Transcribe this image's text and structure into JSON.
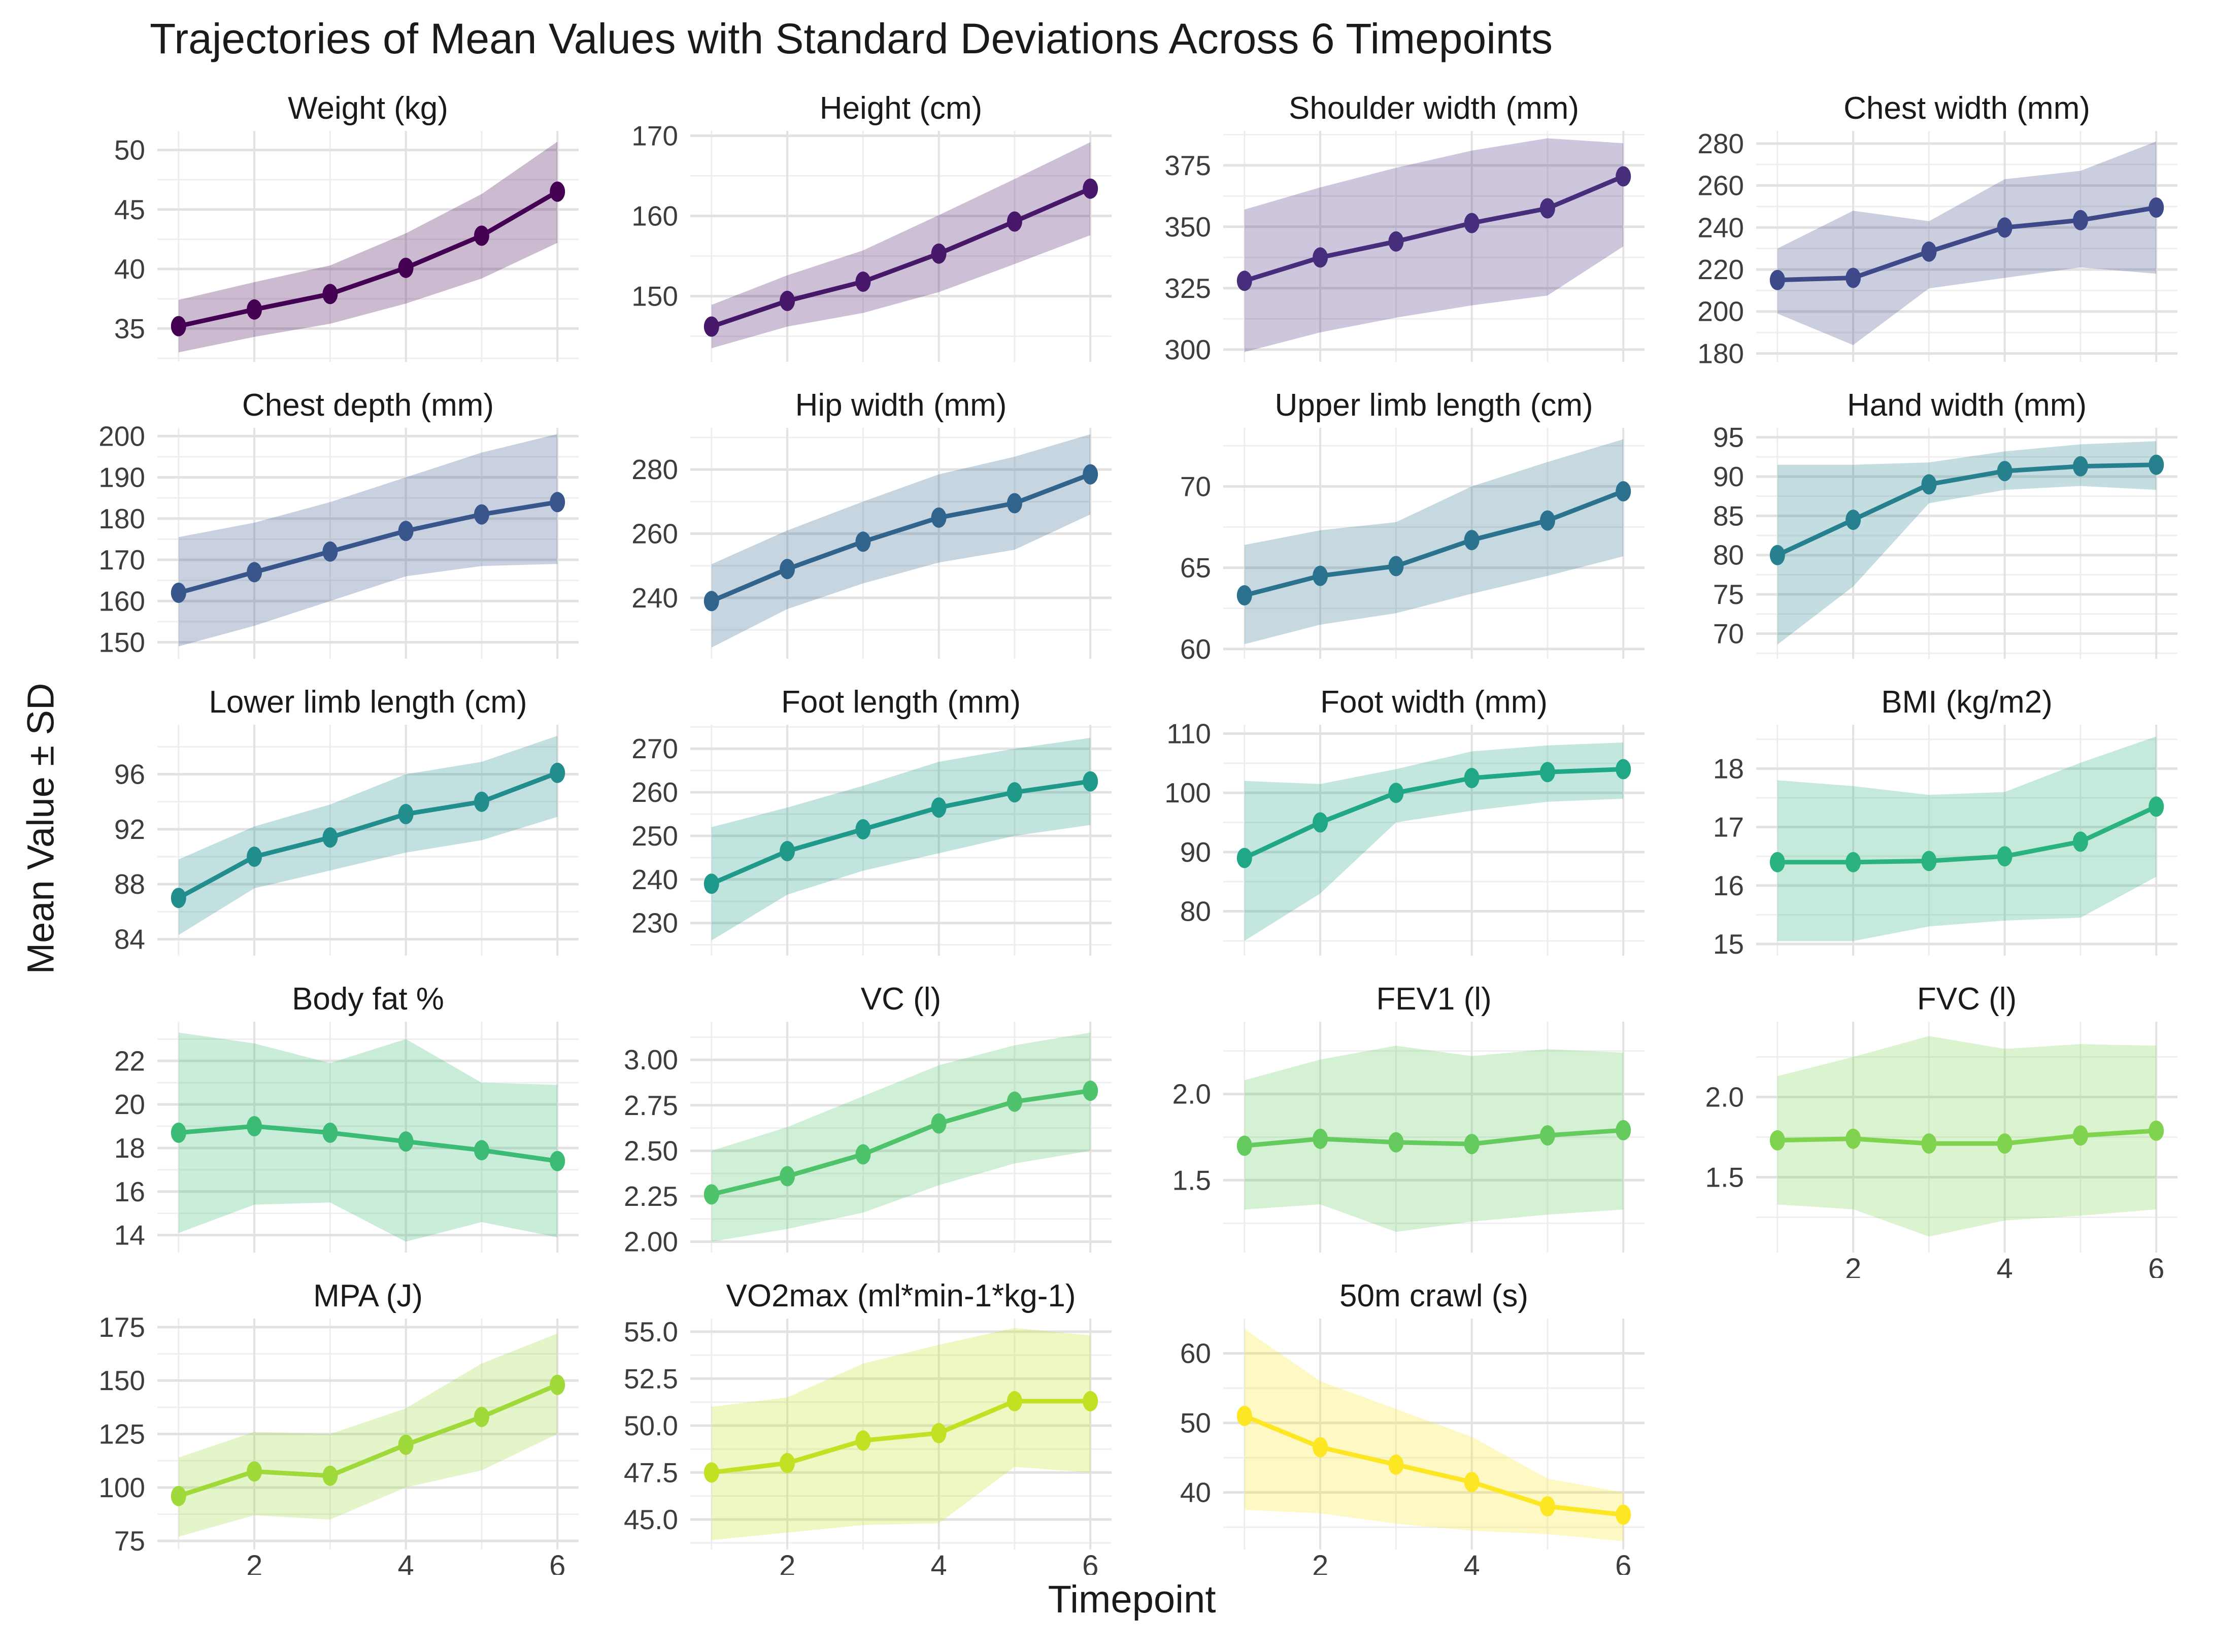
{
  "title": "Trajectories of Mean Values with Standard Deviations Across 6 Timepoints",
  "chart_data": {
    "type": "line",
    "title": "Trajectories of Mean Values with Standard Deviations Across 6 Timepoints",
    "xlabel": "Timepoint",
    "ylabel": "Mean Value ± SD",
    "x": [
      1,
      2,
      3,
      4,
      5,
      6
    ],
    "x_ticks_at": [
      2,
      4,
      6
    ],
    "x_tick_labels": [
      "2",
      "4",
      "6"
    ],
    "grid": "on",
    "legend": "none",
    "ribbon_opacity": 0.27,
    "facets": [
      {
        "title": "Weight (kg)",
        "color": "#440154",
        "row": 1,
        "col": 1,
        "show_x_ticks": false,
        "ylim": [
          32.2,
          51.6
        ],
        "yticks": [
          35,
          40,
          45,
          50
        ],
        "ytick_labels": [
          "35",
          "40",
          "45",
          "50"
        ],
        "mean": [
          35.2,
          36.6,
          37.9,
          40.1,
          42.8,
          46.5
        ],
        "sd_lower": [
          33.0,
          34.3,
          35.4,
          37.1,
          39.2,
          42.2
        ],
        "sd_upper": [
          37.4,
          38.9,
          40.3,
          43.0,
          46.3,
          50.7
        ]
      },
      {
        "title": "Height (cm)",
        "color": "#471769",
        "row": 1,
        "col": 2,
        "show_x_ticks": false,
        "ylim": [
          141.8,
          170.6
        ],
        "yticks": [
          150,
          160,
          170
        ],
        "ytick_labels": [
          "150",
          "160",
          "170"
        ],
        "mean": [
          146.2,
          149.4,
          151.8,
          155.3,
          159.3,
          163.4
        ],
        "sd_lower": [
          143.5,
          146.2,
          147.9,
          150.5,
          154.0,
          157.6
        ],
        "sd_upper": [
          148.9,
          152.6,
          155.7,
          160.1,
          164.6,
          169.2
        ]
      },
      {
        "title": "Shoulder width (mm)",
        "color": "#472E7C",
        "row": 1,
        "col": 3,
        "show_x_ticks": false,
        "ylim": [
          295,
          389
        ],
        "yticks": [
          300,
          325,
          350,
          375
        ],
        "ytick_labels": [
          "300",
          "325",
          "350",
          "375"
        ],
        "mean": [
          328,
          337.5,
          344,
          351.5,
          357.5,
          370.5
        ],
        "sd_lower": [
          299,
          307,
          313,
          318,
          322,
          342
        ],
        "sd_upper": [
          357,
          366,
          374,
          381,
          386,
          384
        ]
      },
      {
        "title": "Chest width (mm)",
        "color": "#3E4989",
        "row": 1,
        "col": 4,
        "show_x_ticks": false,
        "ylim": [
          176,
          286
        ],
        "yticks": [
          180,
          200,
          220,
          240,
          260,
          280
        ],
        "ytick_labels": [
          "180",
          "200",
          "220",
          "240",
          "260",
          "280"
        ],
        "mean": [
          215,
          216,
          228.5,
          240,
          243.5,
          249.5
        ],
        "sd_lower": [
          199,
          184,
          211,
          216,
          221,
          218
        ],
        "sd_upper": [
          230,
          248,
          243,
          263,
          267,
          281
        ]
      },
      {
        "title": "Chest depth (mm)",
        "color": "#38568B",
        "row": 2,
        "col": 1,
        "show_x_ticks": false,
        "ylim": [
          146,
          202
        ],
        "yticks": [
          150,
          160,
          170,
          180,
          190,
          200
        ],
        "ytick_labels": [
          "150",
          "160",
          "170",
          "180",
          "190",
          "200"
        ],
        "mean": [
          162,
          167,
          172,
          177,
          181,
          184
        ],
        "sd_lower": [
          149,
          154,
          160,
          166,
          168.5,
          169
        ],
        "sd_upper": [
          175.5,
          179,
          184,
          190,
          196,
          200.5
        ]
      },
      {
        "title": "Hip width (mm)",
        "color": "#31648D",
        "row": 2,
        "col": 2,
        "show_x_ticks": false,
        "ylim": [
          221,
          293
        ],
        "yticks": [
          240,
          260,
          280
        ],
        "ytick_labels": [
          "240",
          "260",
          "280"
        ],
        "mean": [
          239,
          249,
          257.5,
          265,
          269.5,
          278.5
        ],
        "sd_lower": [
          224.5,
          236.5,
          244.5,
          251,
          255,
          266
        ],
        "sd_upper": [
          250.5,
          261,
          270,
          278.5,
          284,
          291
        ]
      },
      {
        "title": "Upper limb length (cm)",
        "color": "#2B728E",
        "row": 2,
        "col": 3,
        "show_x_ticks": false,
        "ylim": [
          59.4,
          73.6
        ],
        "yticks": [
          60,
          65,
          70
        ],
        "ytick_labels": [
          "60",
          "65",
          "70"
        ],
        "mean": [
          63.3,
          64.5,
          65.1,
          66.7,
          67.9,
          69.7
        ],
        "sd_lower": [
          60.3,
          61.5,
          62.2,
          63.4,
          64.5,
          65.7
        ],
        "sd_upper": [
          66.4,
          67.3,
          67.8,
          70.0,
          71.5,
          72.9
        ]
      },
      {
        "title": "Hand width (mm)",
        "color": "#26808E",
        "row": 2,
        "col": 4,
        "show_x_ticks": false,
        "ylim": [
          66.8,
          96.2
        ],
        "yticks": [
          70,
          75,
          80,
          85,
          90,
          95
        ],
        "ytick_labels": [
          "70",
          "75",
          "80",
          "85",
          "90",
          "95"
        ],
        "mean": [
          80,
          84.5,
          89,
          90.7,
          91.3,
          91.5
        ],
        "sd_lower": [
          68.6,
          76,
          86.6,
          88.3,
          88.8,
          88.3
        ],
        "sd_upper": [
          91.5,
          91.5,
          91.8,
          93.2,
          94.1,
          94.5
        ]
      },
      {
        "title": "Lower limb length (cm)",
        "color": "#228D8D",
        "row": 3,
        "col": 1,
        "show_x_ticks": false,
        "ylim": [
          82.8,
          99.6
        ],
        "yticks": [
          84,
          88,
          92,
          96
        ],
        "ytick_labels": [
          "84",
          "88",
          "92",
          "96"
        ],
        "mean": [
          87,
          90,
          91.4,
          93.1,
          94,
          96.1
        ],
        "sd_lower": [
          84.3,
          87.7,
          89,
          90.3,
          91.2,
          92.9
        ],
        "sd_upper": [
          89.8,
          92.2,
          93.8,
          96.0,
          96.9,
          98.8
        ]
      },
      {
        "title": "Foot length (mm)",
        "color": "#1F9A8A",
        "row": 3,
        "col": 2,
        "show_x_ticks": false,
        "ylim": [
          222.5,
          275.5
        ],
        "yticks": [
          230,
          240,
          250,
          260,
          270
        ],
        "ytick_labels": [
          "230",
          "240",
          "250",
          "260",
          "270"
        ],
        "mean": [
          239,
          246.5,
          251.5,
          256.5,
          260,
          262.5
        ],
        "sd_lower": [
          226,
          236.5,
          242,
          246,
          250,
          252.5
        ],
        "sd_upper": [
          252,
          256.5,
          261.5,
          267,
          270,
          272.5
        ]
      },
      {
        "title": "Foot width (mm)",
        "color": "#20A786",
        "row": 3,
        "col": 3,
        "show_x_ticks": false,
        "ylim": [
          72.5,
          111.5
        ],
        "yticks": [
          80,
          90,
          100,
          110
        ],
        "ytick_labels": [
          "80",
          "90",
          "100",
          "110"
        ],
        "mean": [
          89,
          95,
          100,
          102.5,
          103.5,
          104
        ],
        "sd_lower": [
          75,
          83,
          95,
          97,
          98.5,
          99
        ],
        "sd_upper": [
          102,
          101.5,
          104,
          107,
          108,
          108.5
        ]
      },
      {
        "title": "BMI (kg/m2)",
        "color": "#2AB37E",
        "row": 3,
        "col": 4,
        "show_x_ticks": false,
        "ylim": [
          14.8,
          18.75
        ],
        "yticks": [
          15,
          16,
          17,
          18
        ],
        "ytick_labels": [
          "15",
          "16",
          "17",
          "18"
        ],
        "mean": [
          16.4,
          16.4,
          16.42,
          16.5,
          16.75,
          17.35
        ],
        "sd_lower": [
          15.05,
          15.05,
          15.3,
          15.4,
          15.45,
          16.15
        ],
        "sd_upper": [
          17.8,
          17.7,
          17.55,
          17.6,
          18.1,
          18.55
        ]
      },
      {
        "title": "Body fat %",
        "color": "#3BBB75",
        "row": 4,
        "col": 1,
        "show_x_ticks": false,
        "ylim": [
          13.2,
          23.8
        ],
        "yticks": [
          14,
          16,
          18,
          20,
          22
        ],
        "ytick_labels": [
          "14",
          "16",
          "18",
          "20",
          "22"
        ],
        "mean": [
          18.7,
          19.0,
          18.7,
          18.3,
          17.9,
          17.4
        ],
        "sd_lower": [
          14.1,
          15.4,
          15.5,
          13.7,
          14.6,
          13.9
        ],
        "sd_upper": [
          23.3,
          22.8,
          21.9,
          23.0,
          21.0,
          20.9
        ]
      },
      {
        "title": "VC (l)",
        "color": "#4EC36B",
        "row": 4,
        "col": 2,
        "show_x_ticks": false,
        "ylim": [
          1.94,
          3.21
        ],
        "yticks": [
          2.0,
          2.25,
          2.5,
          2.75,
          3.0
        ],
        "ytick_labels": [
          "2.00",
          "2.25",
          "2.50",
          "2.75",
          "3.00"
        ],
        "mean": [
          2.26,
          2.36,
          2.48,
          2.65,
          2.77,
          2.83
        ],
        "sd_lower": [
          2.0,
          2.07,
          2.16,
          2.31,
          2.43,
          2.5
        ],
        "sd_upper": [
          2.5,
          2.63,
          2.8,
          2.97,
          3.08,
          3.15
        ]
      },
      {
        "title": "FEV1 (l)",
        "color": "#65CB5E",
        "row": 4,
        "col": 3,
        "show_x_ticks": false,
        "ylim": [
          1.08,
          2.42
        ],
        "yticks": [
          1.5,
          2.0
        ],
        "ytick_labels": [
          "1.5",
          "2.0"
        ],
        "mean": [
          1.7,
          1.74,
          1.72,
          1.71,
          1.76,
          1.79
        ],
        "sd_lower": [
          1.33,
          1.36,
          1.2,
          1.26,
          1.3,
          1.33
        ],
        "sd_upper": [
          2.08,
          2.2,
          2.28,
          2.22,
          2.26,
          2.24
        ]
      },
      {
        "title": "FVC (l)",
        "color": "#7FD34E",
        "row": 4,
        "col": 4,
        "show_x_ticks": true,
        "ylim": [
          1.03,
          2.47
        ],
        "yticks": [
          1.5,
          2.0
        ],
        "ytick_labels": [
          "1.5",
          "2.0"
        ],
        "mean": [
          1.73,
          1.74,
          1.71,
          1.71,
          1.76,
          1.79
        ],
        "sd_lower": [
          1.33,
          1.3,
          1.13,
          1.23,
          1.26,
          1.3
        ],
        "sd_upper": [
          2.13,
          2.25,
          2.38,
          2.3,
          2.33,
          2.32
        ]
      },
      {
        "title": "MPA (J)",
        "color": "#9FDA3A",
        "row": 5,
        "col": 1,
        "show_x_ticks": true,
        "ylim": [
          71,
          179
        ],
        "yticks": [
          75,
          100,
          125,
          150,
          175
        ],
        "ytick_labels": [
          "75",
          "100",
          "125",
          "150",
          "175"
        ],
        "mean": [
          96,
          107.5,
          105.5,
          120,
          133,
          148
        ],
        "sd_lower": [
          77,
          87,
          85,
          100,
          108,
          125
        ],
        "sd_upper": [
          114,
          126,
          125,
          137,
          158,
          172
        ]
      },
      {
        "title": "VO2max (ml*min-1*kg-1)",
        "color": "#C4E022",
        "row": 5,
        "col": 2,
        "show_x_ticks": true,
        "ylim": [
          43.4,
          55.7
        ],
        "yticks": [
          45,
          47.5,
          50,
          52.5,
          55
        ],
        "ytick_labels": [
          "45.0",
          "47.5",
          "50.0",
          "52.5",
          "55.0"
        ],
        "mean": [
          47.5,
          48.0,
          49.2,
          49.6,
          51.3,
          51.3
        ],
        "sd_lower": [
          43.9,
          44.3,
          44.7,
          44.8,
          47.8,
          47.5
        ],
        "sd_upper": [
          51.0,
          51.5,
          53.3,
          54.3,
          55.2,
          54.8
        ]
      },
      {
        "title": "50m crawl (s)",
        "color": "#FDE725",
        "row": 5,
        "col": 3,
        "show_x_ticks": true,
        "ylim": [
          31.8,
          65
        ],
        "yticks": [
          40,
          50,
          60
        ],
        "ytick_labels": [
          "40",
          "50",
          "60"
        ],
        "mean": [
          51,
          46.5,
          44,
          41.5,
          38,
          36.8
        ],
        "sd_lower": [
          37.5,
          37,
          35.5,
          34.5,
          34,
          33
        ],
        "sd_upper": [
          63.5,
          56,
          52,
          48,
          42,
          40
        ]
      }
    ]
  }
}
